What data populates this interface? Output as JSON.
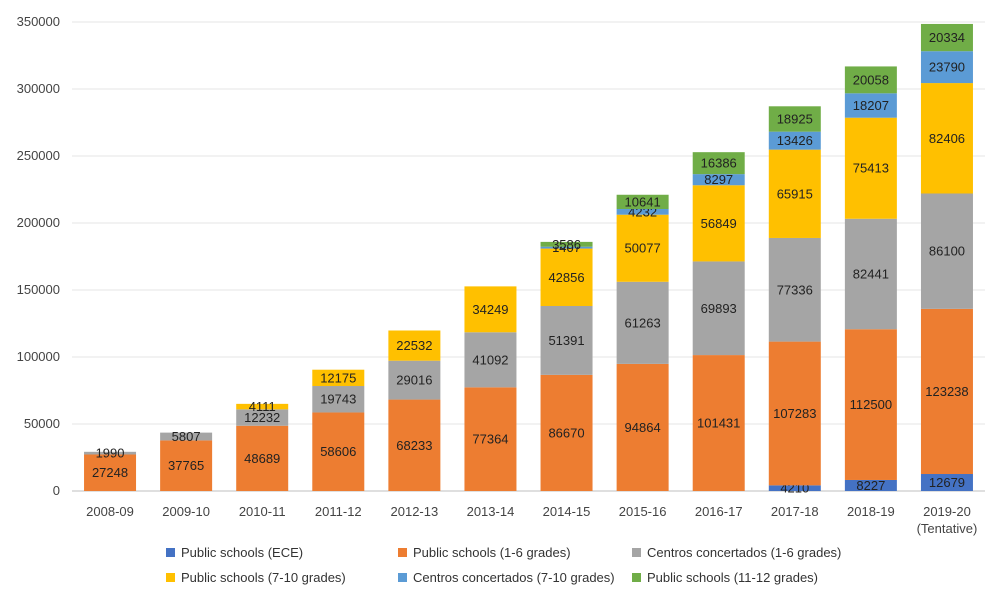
{
  "chart_data": {
    "type": "bar",
    "stacked": true,
    "title": "",
    "xlabel": "",
    "ylabel": "",
    "ylim": [
      0,
      350000
    ],
    "yticks": [
      0,
      50000,
      100000,
      150000,
      200000,
      250000,
      300000,
      350000
    ],
    "ytick_labels": [
      "0",
      "50000",
      "100000",
      "150000",
      "200000",
      "250000",
      "300000",
      "350000"
    ],
    "grid": true,
    "legend_position": "bottom",
    "categories": [
      "2008-09",
      "2009-10",
      "2010-11",
      "2011-12",
      "2012-13",
      "2013-14",
      "2014-15",
      "2015-16",
      "2016-17",
      "2017-18",
      "2018-19",
      "2019-20"
    ],
    "category_sublabels": [
      "",
      "",
      "",
      "",
      "",
      "",
      "",
      "",
      "",
      "",
      "",
      "(Tentative)"
    ],
    "series": [
      {
        "name": "Public schools (ECE)",
        "color": "#4472c4",
        "values": [
          0,
          0,
          0,
          0,
          0,
          0,
          0,
          0,
          0,
          4210,
          8227,
          12679
        ],
        "labels": [
          "",
          "",
          "",
          "",
          "",
          "",
          "",
          "",
          "",
          "4210",
          "8227",
          "12679"
        ]
      },
      {
        "name": "Public schools (1-6 grades)",
        "color": "#ed7d31",
        "values": [
          27248,
          37765,
          48689,
          58606,
          68233,
          77364,
          86670,
          94864,
          101431,
          107283,
          112500,
          123238
        ],
        "labels": [
          "27248",
          "37765",
          "48689",
          "58606",
          "68233",
          "77364",
          "86670",
          "94864",
          "101431",
          "107283",
          "112500",
          "123238"
        ]
      },
      {
        "name": "Centros concertados (1-6 grades)",
        "color": "#a5a5a5",
        "values": [
          1990,
          5807,
          12232,
          19743,
          29016,
          41092,
          51391,
          61263,
          69893,
          77336,
          82441,
          86100
        ],
        "labels": [
          "1990",
          "5807",
          "12232",
          "19743",
          "29016",
          "41092",
          "51391",
          "61263",
          "69893",
          "77336",
          "82441",
          "86100"
        ]
      },
      {
        "name": "Public schools (7-10 grades)",
        "color": "#ffc000",
        "values": [
          0,
          0,
          4111,
          12175,
          22532,
          34249,
          42856,
          50077,
          56849,
          65915,
          75413,
          82406
        ],
        "labels": [
          "",
          "",
          "4111",
          "12175",
          "22532",
          "34249",
          "42856",
          "50077",
          "56849",
          "65915",
          "75413",
          "82406"
        ]
      },
      {
        "name": "Centros concertados (7-10 grades)",
        "color": "#5b9bd5",
        "values": [
          0,
          0,
          0,
          0,
          0,
          0,
          1407,
          4232,
          8297,
          13426,
          18207,
          23790
        ],
        "labels": [
          "",
          "",
          "",
          "",
          "",
          "",
          "1407",
          "4232",
          "8297",
          "13426",
          "18207",
          "23790"
        ]
      },
      {
        "name": "Public schools (11-12 grades)",
        "color": "#70ad47",
        "values": [
          0,
          0,
          0,
          0,
          0,
          0,
          3586,
          10641,
          16386,
          18925,
          20058,
          20334
        ],
        "labels": [
          "",
          "",
          "",
          "",
          "",
          "",
          "3586",
          "10641",
          "16386",
          "18925",
          "20058",
          "20334"
        ]
      }
    ]
  }
}
